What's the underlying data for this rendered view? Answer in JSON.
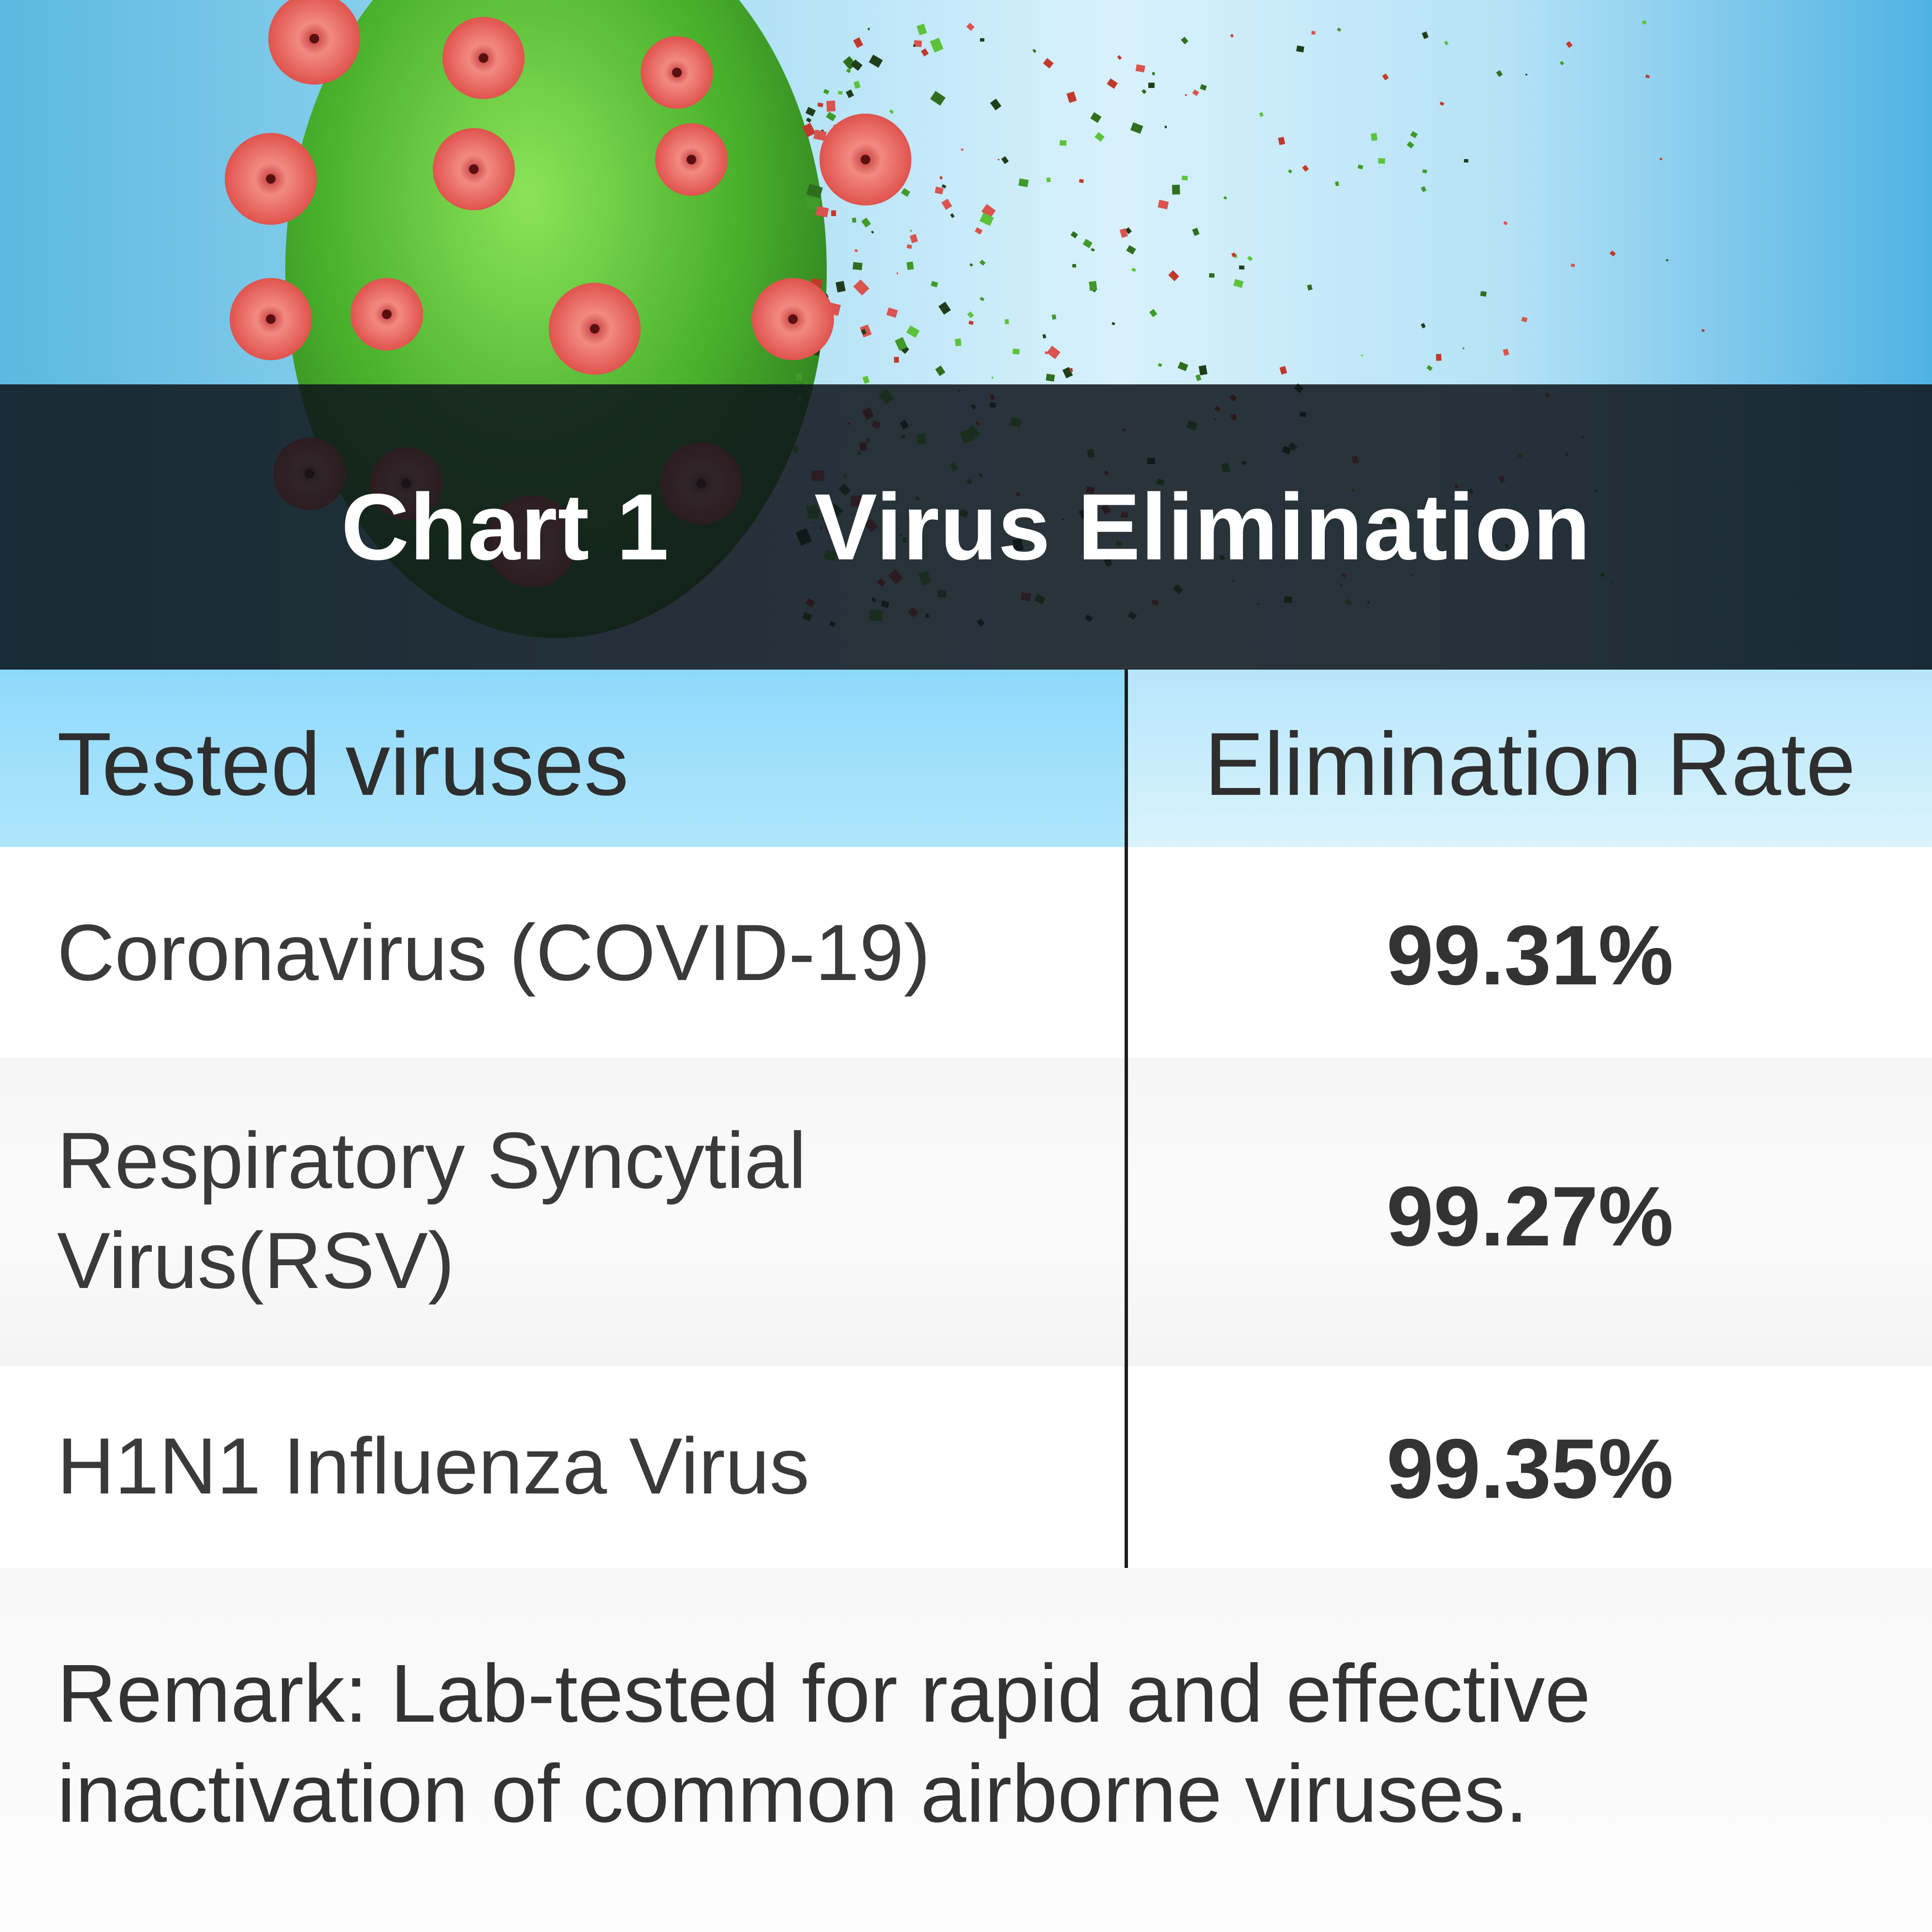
{
  "chart_data": {
    "type": "table",
    "title": "Chart 1     Virus Elimination",
    "columns": [
      "Tested viruses",
      "Elimination Rate"
    ],
    "rows": [
      {
        "virus": "Coronavirus (COVID-19)",
        "rate": "99.31%",
        "value": 99.31
      },
      {
        "virus": "Respiratory Syncytial Virus(RSV)",
        "rate": "99.27%",
        "value": 99.27
      },
      {
        "virus": "H1N1 Influenza Virus",
        "rate": "99.35%",
        "value": 99.35
      }
    ],
    "remark": "Remark: Lab-tested for rapid and effective inactivation of common airborne viruses."
  },
  "header": {
    "title_part1": "Chart 1",
    "title_part2": "Virus Elimination"
  },
  "table": {
    "col1": "Tested viruses",
    "col2": "Elimination Rate",
    "rows": [
      {
        "name_lines": [
          "Coronavirus (COVID-19)"
        ],
        "rate": "99.31%"
      },
      {
        "name_lines": [
          "Respiratory Syncytial",
          "Virus(RSV)"
        ],
        "rate": "99.27%"
      },
      {
        "name_lines": [
          "H1N1 Influenza Virus"
        ],
        "rate": "99.35%"
      }
    ]
  },
  "remark_lines": [
    "Remark: Lab-tested for rapid and effective",
    "inactivation of common airborne viruses."
  ],
  "illustration": {
    "icon": "virus-disintegrating-illustration",
    "colors": {
      "body": "#5fc83a",
      "spikes": "#e8706a"
    }
  }
}
